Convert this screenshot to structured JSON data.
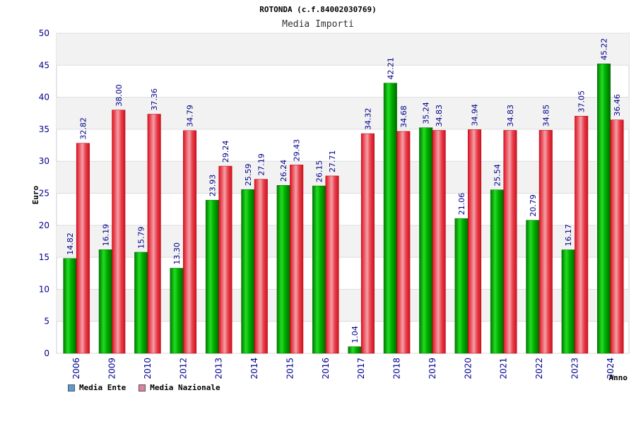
{
  "chart_data": {
    "type": "bar",
    "title": "ROTONDA (c.f.84002030769)",
    "subtitle": "Media Importi",
    "xlabel": "Anno",
    "ylabel": "Euro",
    "ylim": [
      0,
      50
    ],
    "yticks": [
      0,
      5,
      10,
      15,
      20,
      25,
      30,
      35,
      40,
      45,
      50
    ],
    "yticks_text": [
      "0",
      "5",
      "10",
      "15",
      "20",
      "25",
      "30",
      "35",
      "40",
      "45",
      "50"
    ],
    "grid": true,
    "categories": [
      "2006",
      "2009",
      "2010",
      "2012",
      "2013",
      "2014",
      "2015",
      "2016",
      "2017",
      "2018",
      "2019",
      "2020",
      "2021",
      "2022",
      "2023",
      "2024"
    ],
    "series": [
      {
        "name": "Media Ente",
        "color": "#00aa00",
        "legend_color": "#5b9bd5",
        "values": [
          14.82,
          16.19,
          15.79,
          13.3,
          23.93,
          25.59,
          26.24,
          26.15,
          1.04,
          42.21,
          35.24,
          21.06,
          25.54,
          20.79,
          16.17,
          45.22
        ],
        "labels": [
          "14.82",
          "16.19",
          "15.79",
          "13.30",
          "23.93",
          "25.59",
          "26.24",
          "26.15",
          "1.04",
          "42.21",
          "35.24",
          "21.06",
          "25.54",
          "20.79",
          "16.17",
          "45.22"
        ]
      },
      {
        "name": "Media Nazionale",
        "color": "#e8202a",
        "legend_color": "#e07fa0",
        "values": [
          32.82,
          38.0,
          37.36,
          34.79,
          29.24,
          27.19,
          29.43,
          27.71,
          34.32,
          34.68,
          34.83,
          34.94,
          34.83,
          34.85,
          37.05,
          36.46
        ],
        "labels": [
          "32.82",
          "38.00",
          "37.36",
          "34.79",
          "29.24",
          "27.19",
          "29.43",
          "27.71",
          "34.32",
          "34.68",
          "34.83",
          "34.94",
          "34.83",
          "34.85",
          "37.05",
          "36.46"
        ]
      }
    ],
    "legend_position": "bottom-left"
  }
}
